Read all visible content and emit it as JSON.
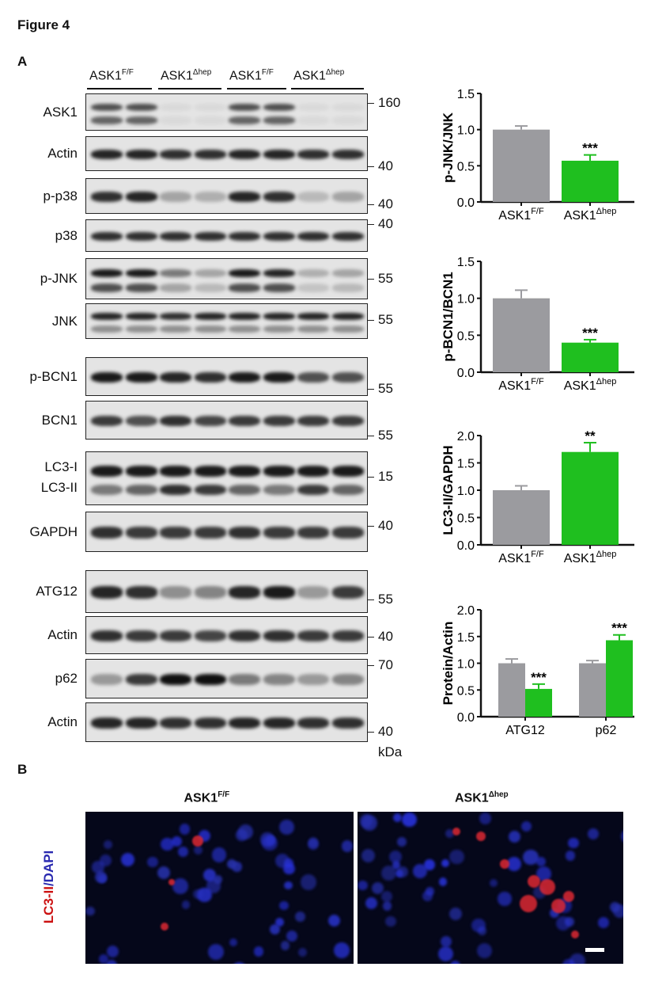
{
  "figure_title": "Figure 4",
  "panel_a_label": "A",
  "panel_b_label": "B",
  "groups": [
    {
      "base": "ASK1",
      "sup": "F/F"
    },
    {
      "base": "ASK1",
      "sup": "Δhep"
    },
    {
      "base": "ASK1",
      "sup": "F/F"
    },
    {
      "base": "ASK1",
      "sup": "Δhep"
    }
  ],
  "blots": [
    {
      "label": "ASK1",
      "kda": "160",
      "bands": [
        [
          0.7,
          0.7,
          0.05,
          0.05,
          0.7,
          0.7,
          0.05,
          0.05
        ],
        [
          0.6,
          0.6,
          0.05,
          0.05,
          0.6,
          0.6,
          0.05,
          0.05
        ]
      ]
    },
    {
      "label": "Actin",
      "kda": "40",
      "bands": [
        [
          0.9,
          0.9,
          0.85,
          0.85,
          0.9,
          0.9,
          0.85,
          0.85
        ]
      ]
    },
    {
      "label": "p-p38",
      "kda": "40",
      "bands": [
        [
          0.85,
          0.9,
          0.3,
          0.25,
          0.9,
          0.85,
          0.2,
          0.3
        ]
      ]
    },
    {
      "label": "p38",
      "kda": "40",
      "bands": [
        [
          0.85,
          0.85,
          0.85,
          0.85,
          0.85,
          0.85,
          0.85,
          0.85
        ]
      ]
    },
    {
      "label": "p-JNK",
      "kda": "55",
      "bands": [
        [
          0.95,
          0.95,
          0.5,
          0.3,
          0.95,
          0.9,
          0.25,
          0.3
        ],
        [
          0.7,
          0.7,
          0.3,
          0.2,
          0.7,
          0.7,
          0.15,
          0.2
        ]
      ]
    },
    {
      "label": "JNK",
      "kda": "55",
      "bands": [
        [
          0.9,
          0.9,
          0.85,
          0.9,
          0.9,
          0.9,
          0.9,
          0.9
        ],
        [
          0.4,
          0.4,
          0.4,
          0.4,
          0.4,
          0.4,
          0.4,
          0.4
        ]
      ]
    },
    {
      "label": "p-BCN1",
      "kda": "55",
      "bands": [
        [
          0.95,
          0.95,
          0.9,
          0.85,
          0.95,
          0.95,
          0.7,
          0.7
        ]
      ]
    },
    {
      "label": "BCN1",
      "kda": "55",
      "bands": [
        [
          0.8,
          0.7,
          0.85,
          0.75,
          0.8,
          0.8,
          0.8,
          0.8
        ]
      ]
    },
    {
      "label": "LC3-I",
      "label2": "LC3-II",
      "kda": "15",
      "bands": [
        [
          0.95,
          0.95,
          0.95,
          0.95,
          0.95,
          0.95,
          0.95,
          0.95
        ],
        [
          0.5,
          0.6,
          0.85,
          0.8,
          0.6,
          0.5,
          0.8,
          0.6
        ]
      ]
    },
    {
      "label": "GAPDH",
      "kda": "40",
      "bands": [
        [
          0.85,
          0.8,
          0.8,
          0.8,
          0.85,
          0.8,
          0.8,
          0.8
        ]
      ]
    },
    {
      "label": "ATG12",
      "kda": "55",
      "bands": [
        [
          0.9,
          0.85,
          0.4,
          0.45,
          0.9,
          0.95,
          0.35,
          0.8
        ]
      ]
    },
    {
      "label": "Actin",
      "kda": "40",
      "bands": [
        [
          0.85,
          0.8,
          0.8,
          0.75,
          0.85,
          0.85,
          0.8,
          0.8
        ]
      ]
    },
    {
      "label": "p62",
      "kda": "70",
      "bands": [
        [
          0.35,
          0.8,
          1.0,
          1.0,
          0.5,
          0.45,
          0.35,
          0.45
        ]
      ]
    },
    {
      "label": "Actin",
      "kda": "40",
      "bands": [
        [
          0.9,
          0.9,
          0.85,
          0.85,
          0.9,
          0.9,
          0.85,
          0.85
        ]
      ]
    }
  ],
  "kda_unit": "kDa",
  "chart_data": [
    {
      "type": "bar",
      "ylabel": "p-JNK/JNK",
      "ylim": [
        0,
        1.5
      ],
      "yticks": [
        "0.0",
        "0.5",
        "1.0",
        "1.5"
      ],
      "categories": [
        {
          "base": "ASK1",
          "sup": "F/F"
        },
        {
          "base": "ASK1",
          "sup": "Δhep"
        }
      ],
      "values": [
        1.0,
        0.57
      ],
      "errors": [
        0.05,
        0.08
      ],
      "significance": [
        "",
        "***"
      ]
    },
    {
      "type": "bar",
      "ylabel": "p-BCN1/BCN1",
      "ylim": [
        0,
        1.5
      ],
      "yticks": [
        "0.0",
        "0.5",
        "1.0",
        "1.5"
      ],
      "categories": [
        {
          "base": "ASK1",
          "sup": "F/F"
        },
        {
          "base": "ASK1",
          "sup": "Δhep"
        }
      ],
      "values": [
        1.0,
        0.4
      ],
      "errors": [
        0.11,
        0.04
      ],
      "significance": [
        "",
        "***"
      ]
    },
    {
      "type": "bar",
      "ylabel": "LC3-II/GAPDH",
      "ylim": [
        0,
        2.0
      ],
      "yticks": [
        "0.0",
        "0.5",
        "1.0",
        "1.5",
        "2.0"
      ],
      "categories": [
        {
          "base": "ASK1",
          "sup": "F/F"
        },
        {
          "base": "ASK1",
          "sup": "Δhep"
        }
      ],
      "values": [
        1.0,
        1.7
      ],
      "errors": [
        0.08,
        0.17
      ],
      "significance": [
        "",
        "**"
      ]
    },
    {
      "type": "bar",
      "ylabel": "Protein/Actin",
      "ylim": [
        0,
        2.0
      ],
      "yticks": [
        "0.0",
        "0.5",
        "1.0",
        "1.5",
        "2.0"
      ],
      "groups": [
        "ATG12",
        "p62"
      ],
      "series": [
        {
          "values": [
            1.0,
            1.0
          ],
          "errors": [
            0.08,
            0.05
          ]
        },
        {
          "values": [
            0.52,
            1.43
          ],
          "errors": [
            0.09,
            0.1
          ]
        }
      ],
      "significance": [
        [
          "",
          "***"
        ],
        [
          "",
          "***"
        ]
      ]
    }
  ],
  "colors": {
    "control": "#9b9b9f",
    "knockout": "#1fbf1f",
    "lc3": "#cc1111",
    "dapi": "#2a2ab0"
  },
  "panel_b": {
    "titles": [
      {
        "base": "ASK1",
        "sup": "F/F"
      },
      {
        "base": "ASK1",
        "sup": "Δhep"
      }
    ],
    "stain_red": "LC3-II",
    "stain_blue": "/DAPI"
  }
}
